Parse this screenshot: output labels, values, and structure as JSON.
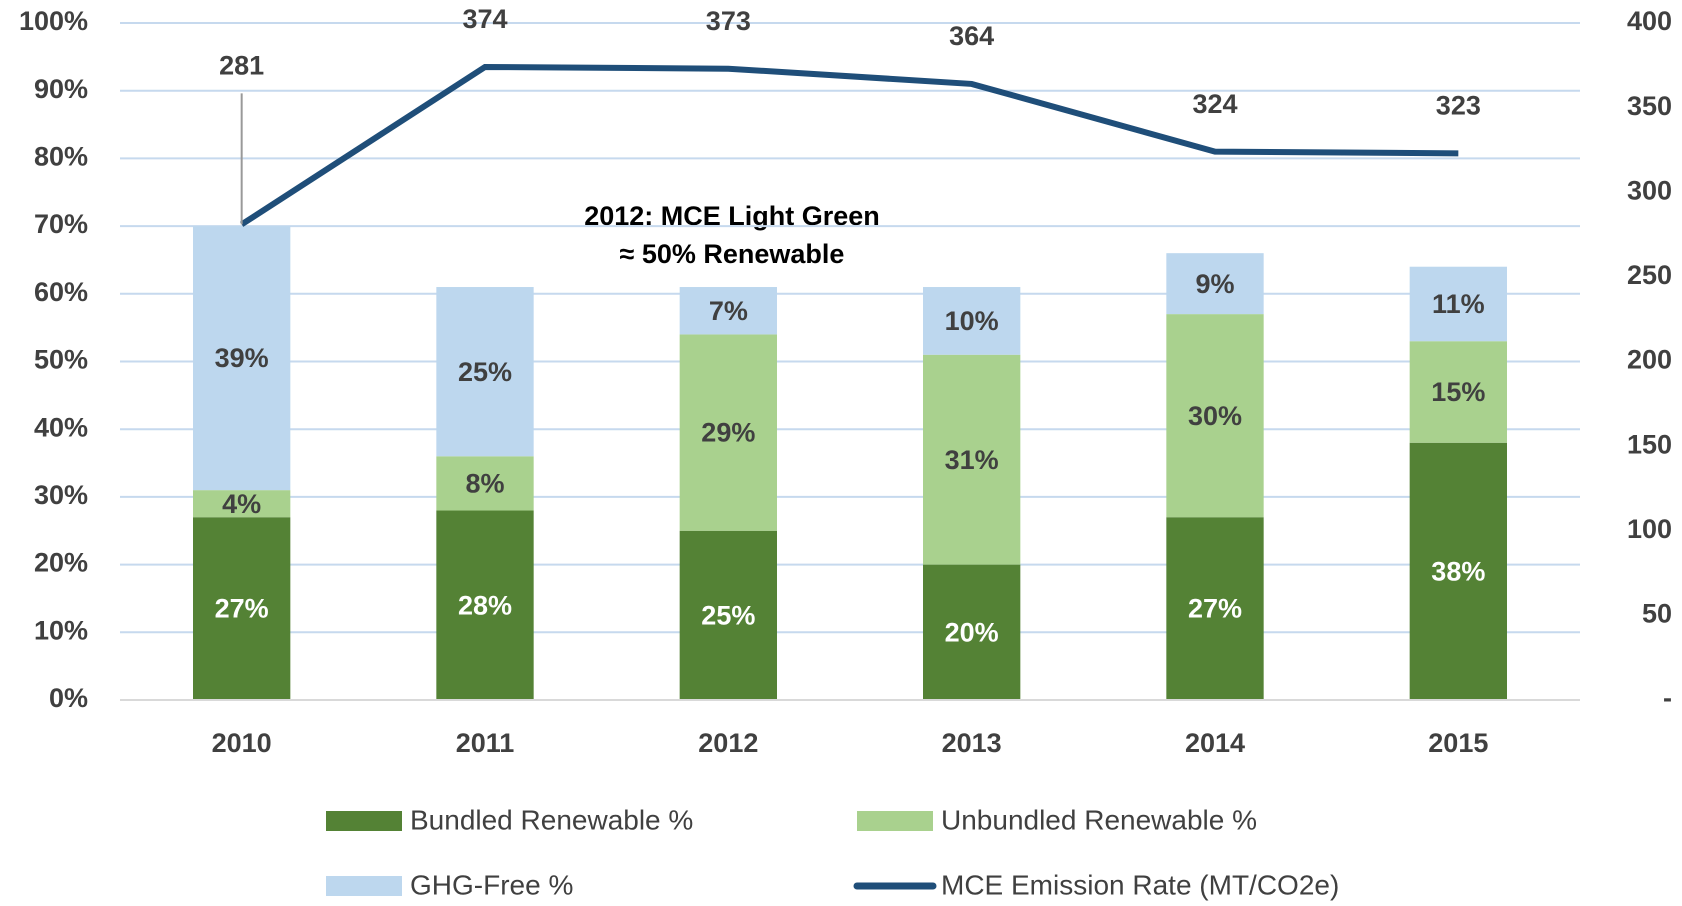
{
  "chart_data": {
    "type": "bar",
    "categories": [
      "2010",
      "2011",
      "2012",
      "2013",
      "2014",
      "2015"
    ],
    "stacked": true,
    "series": [
      {
        "name": "Bundled Renewable %",
        "color": "#548235",
        "values": [
          27,
          28,
          25,
          20,
          27,
          38
        ],
        "value_labels": [
          "27%",
          "28%",
          "25%",
          "20%",
          "27%",
          "38%"
        ]
      },
      {
        "name": "Unbundled Renewable %",
        "color": "#a9d18e",
        "values": [
          4,
          8,
          29,
          31,
          30,
          15
        ],
        "value_labels": [
          "4%",
          "8%",
          "29%",
          "31%",
          "30%",
          "15%"
        ]
      },
      {
        "name": "GHG-Free %",
        "color": "#bdd7ee",
        "values": [
          39,
          25,
          7,
          10,
          9,
          11
        ],
        "value_labels": [
          "39%",
          "25%",
          "7%",
          "10%",
          "9%",
          "11%"
        ]
      },
      {
        "name": "MCE Emission Rate (MT/CO2e)",
        "type": "line",
        "axis": "y2",
        "color": "#1f4e79",
        "values": [
          281,
          374,
          373,
          364,
          324,
          323
        ]
      }
    ],
    "ylim": [
      0,
      100
    ],
    "yticks": [
      {
        "value": 0,
        "label": "0%"
      },
      {
        "value": 10,
        "label": "10%"
      },
      {
        "value": 20,
        "label": "20%"
      },
      {
        "value": 30,
        "label": "30%"
      },
      {
        "value": 40,
        "label": "40%"
      },
      {
        "value": 50,
        "label": "50%"
      },
      {
        "value": 60,
        "label": "60%"
      },
      {
        "value": 70,
        "label": "70%"
      },
      {
        "value": 80,
        "label": "80%"
      },
      {
        "value": 90,
        "label": "90%"
      },
      {
        "value": 100,
        "label": "100%"
      }
    ],
    "y2lim": [
      0,
      400
    ],
    "y2ticks": [
      {
        "value": 0,
        "label": "-"
      },
      50,
      100,
      150,
      200,
      250,
      300,
      350,
      400
    ],
    "grid": true,
    "legend": "bottom",
    "annotation": [
      "2012: MCE Light Green",
      "≈ 50% Renewable"
    ]
  }
}
